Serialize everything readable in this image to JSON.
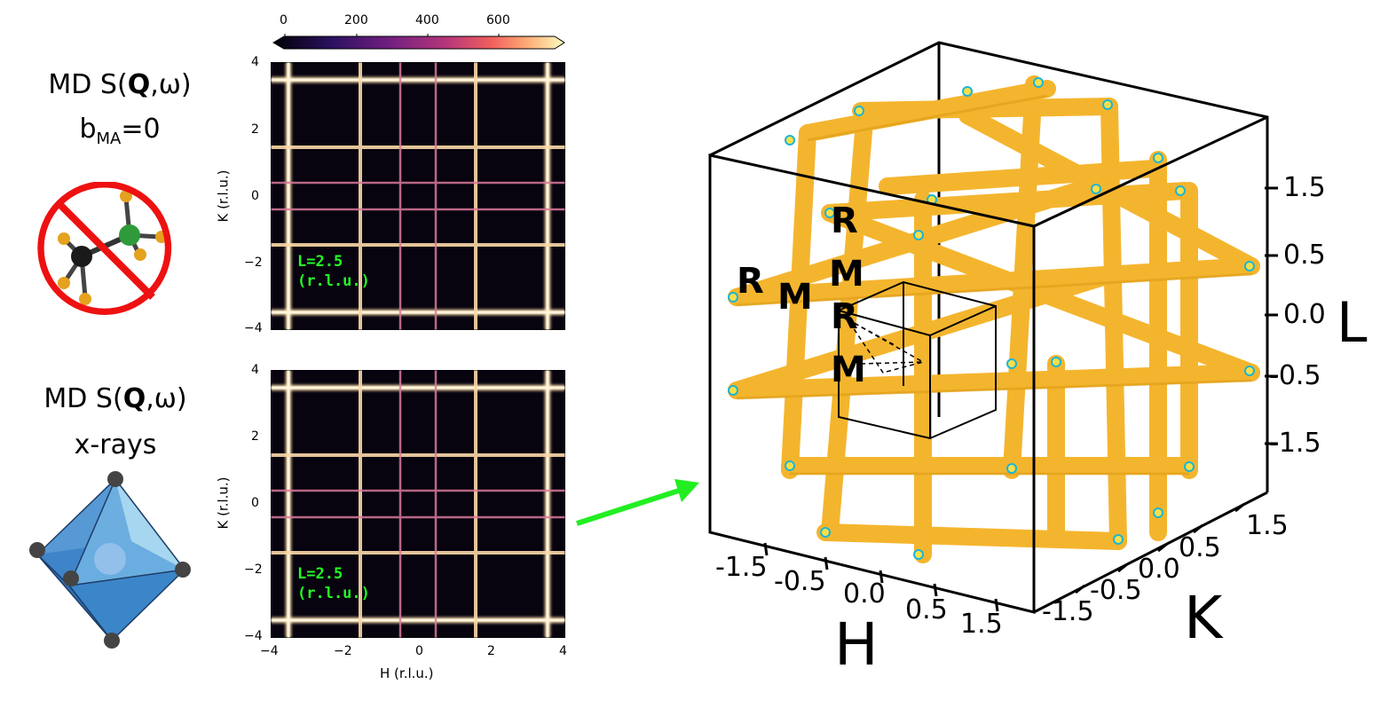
{
  "left": {
    "top_title_1": "MD S(",
    "top_title_bold": "Q",
    "top_title_2": ",ω)",
    "top_b": "b",
    "top_b_sub": "MA",
    "top_b_val": "=0",
    "bottom_title_1": "MD S(",
    "bottom_title_bold": "Q",
    "bottom_title_2": ",ω)",
    "bottom_sub": "x-rays"
  },
  "colorbar": {
    "ticks": [
      "0",
      "200",
      "400",
      "600"
    ]
  },
  "panels": {
    "top": {
      "annotation_line1": "L=2.5",
      "annotation_line2": "(r.l.u.)",
      "ylabel": "K (r.l.u.)",
      "yticks": [
        "4",
        "2",
        "0",
        "−2",
        "−4"
      ]
    },
    "bottom": {
      "annotation_line1": "L=2.5",
      "annotation_line2": "(r.l.u.)",
      "ylabel": "K (r.l.u.)",
      "yticks": [
        "4",
        "2",
        "0",
        "−2",
        "−4"
      ],
      "xlabel": "H (r.l.u.)",
      "xticks": [
        "−4",
        "−2",
        "0",
        "2",
        "4"
      ]
    }
  },
  "cube": {
    "axis_L": "L",
    "axis_H": "H",
    "axis_K": "K",
    "L_ticks": [
      "1.5",
      "0.5",
      "0.0",
      "-0.5",
      "-1.5"
    ],
    "H_ticks": [
      "-1.5",
      "-0.5",
      "0.0",
      "0.5",
      "1.5"
    ],
    "K_ticks": [
      "-1.5",
      "-0.5",
      "0.0",
      "0.5",
      "1.5"
    ],
    "points": [
      "R",
      "M",
      "R",
      "M",
      "R",
      "M"
    ]
  },
  "colors": {
    "iso": "#f4b52e",
    "iso_dark": "#c98c10",
    "arrow": "#22ee22",
    "annotation": "#22ff22",
    "forbid": "#ee1111"
  }
}
